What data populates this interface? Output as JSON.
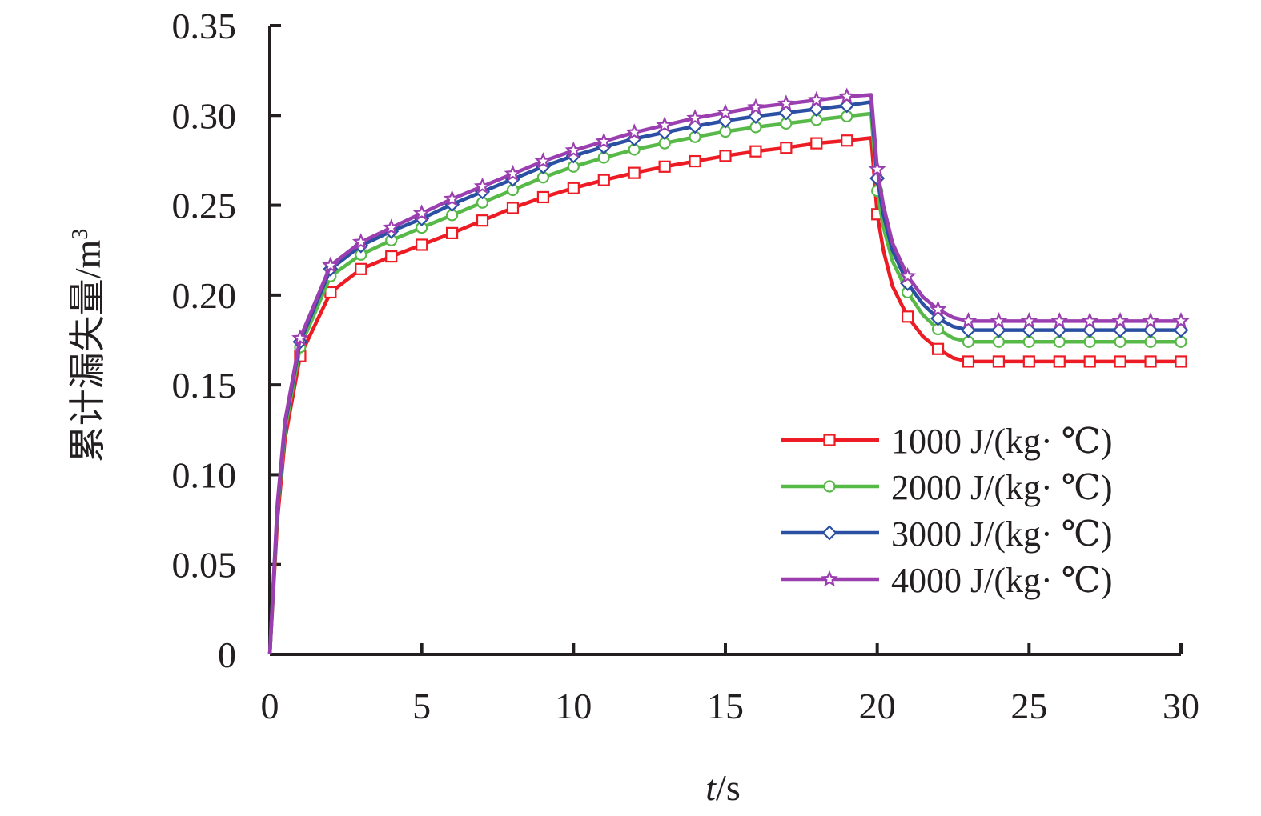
{
  "chart_data": {
    "type": "line",
    "xlabel": "t/s",
    "xlabel_italic": "t",
    "xlabel_unit": "/s",
    "ylabel": "累计漏失量/m3",
    "ylabel_text": "累计漏失量/m",
    "ylabel_sup": "3",
    "xlim": [
      0,
      30
    ],
    "ylim": [
      0,
      0.35
    ],
    "xticks": [
      0,
      5,
      10,
      15,
      20,
      25,
      30
    ],
    "xtick_labels": [
      "0",
      "5",
      "10",
      "15",
      "20",
      "25",
      "30"
    ],
    "yticks": [
      0,
      0.05,
      0.1,
      0.15,
      0.2,
      0.25,
      0.3,
      0.35
    ],
    "ytick_labels": [
      "0",
      "0.05",
      "0.10",
      "0.15",
      "0.20",
      "0.25",
      "0.30",
      "0.35"
    ],
    "grid": false,
    "legend_position": "bottom-right",
    "series": [
      {
        "name": "1000 J/(kg· ℃)",
        "color": "#ed1c24",
        "marker": "square",
        "x": [
          0,
          0.25,
          0.5,
          1,
          2,
          3,
          4,
          5,
          6,
          7,
          8,
          9,
          10,
          11,
          12,
          13,
          14,
          15,
          16,
          17,
          18,
          19,
          19.8,
          20,
          20.2,
          20.5,
          21,
          21.5,
          22,
          22.5,
          23,
          24,
          25,
          26,
          27,
          28,
          29,
          30
        ],
        "values": [
          0,
          0.075,
          0.12,
          0.166,
          0.2015,
          0.2145,
          0.2215,
          0.228,
          0.2345,
          0.2415,
          0.2485,
          0.2545,
          0.2595,
          0.264,
          0.268,
          0.2715,
          0.2745,
          0.2775,
          0.28,
          0.282,
          0.2845,
          0.286,
          0.2875,
          0.245,
          0.225,
          0.205,
          0.188,
          0.177,
          0.17,
          0.165,
          0.163,
          0.163,
          0.163,
          0.163,
          0.163,
          0.163,
          0.163,
          0.163
        ]
      },
      {
        "name": "2000 J/(kg· ℃)",
        "color": "#57b947",
        "marker": "circle",
        "x": [
          0,
          0.25,
          0.5,
          1,
          2,
          3,
          4,
          5,
          6,
          7,
          8,
          9,
          10,
          11,
          12,
          13,
          14,
          15,
          16,
          17,
          18,
          19,
          19.8,
          20,
          20.2,
          20.5,
          21,
          21.5,
          22,
          22.5,
          23,
          24,
          25,
          26,
          27,
          28,
          29,
          30
        ],
        "values": [
          0,
          0.08,
          0.125,
          0.171,
          0.2105,
          0.2225,
          0.2305,
          0.2375,
          0.2445,
          0.2515,
          0.2585,
          0.2655,
          0.2715,
          0.2765,
          0.281,
          0.2845,
          0.288,
          0.291,
          0.2935,
          0.2955,
          0.2975,
          0.2995,
          0.301,
          0.258,
          0.238,
          0.219,
          0.2015,
          0.189,
          0.181,
          0.176,
          0.174,
          0.174,
          0.174,
          0.174,
          0.174,
          0.174,
          0.174,
          0.174
        ]
      },
      {
        "name": "3000 J/(kg· ℃)",
        "color": "#2b4fa3",
        "marker": "diamond",
        "x": [
          0,
          0.25,
          0.5,
          1,
          2,
          3,
          4,
          5,
          6,
          7,
          8,
          9,
          10,
          11,
          12,
          13,
          14,
          15,
          16,
          17,
          18,
          19,
          19.8,
          20,
          20.2,
          20.5,
          21,
          21.5,
          22,
          22.5,
          23,
          24,
          25,
          26,
          27,
          28,
          29,
          30
        ],
        "values": [
          0,
          0.082,
          0.128,
          0.174,
          0.2145,
          0.2275,
          0.2355,
          0.2425,
          0.2505,
          0.2575,
          0.2645,
          0.2715,
          0.2775,
          0.2825,
          0.287,
          0.2905,
          0.294,
          0.297,
          0.2995,
          0.3015,
          0.3035,
          0.3055,
          0.3075,
          0.265,
          0.245,
          0.225,
          0.2065,
          0.195,
          0.187,
          0.1825,
          0.1805,
          0.1805,
          0.1805,
          0.1805,
          0.1805,
          0.1805,
          0.1805,
          0.1805
        ]
      },
      {
        "name": "4000 J/(kg· ℃)",
        "color": "#9b3fb0",
        "marker": "star",
        "x": [
          0,
          0.25,
          0.5,
          1,
          2,
          3,
          4,
          5,
          6,
          7,
          8,
          9,
          10,
          11,
          12,
          13,
          14,
          15,
          16,
          17,
          18,
          19,
          19.8,
          20,
          20.2,
          20.5,
          21,
          21.5,
          22,
          22.5,
          23,
          24,
          25,
          26,
          27,
          28,
          29,
          30
        ],
        "values": [
          0,
          0.084,
          0.13,
          0.176,
          0.2165,
          0.2295,
          0.2375,
          0.2455,
          0.2535,
          0.2605,
          0.2675,
          0.2745,
          0.2805,
          0.2855,
          0.2905,
          0.2945,
          0.2985,
          0.3015,
          0.3045,
          0.3065,
          0.3085,
          0.3105,
          0.3115,
          0.27,
          0.25,
          0.229,
          0.2105,
          0.199,
          0.192,
          0.1875,
          0.1855,
          0.1855,
          0.1855,
          0.1855,
          0.1855,
          0.1855,
          0.1855,
          0.1855
        ]
      }
    ]
  }
}
